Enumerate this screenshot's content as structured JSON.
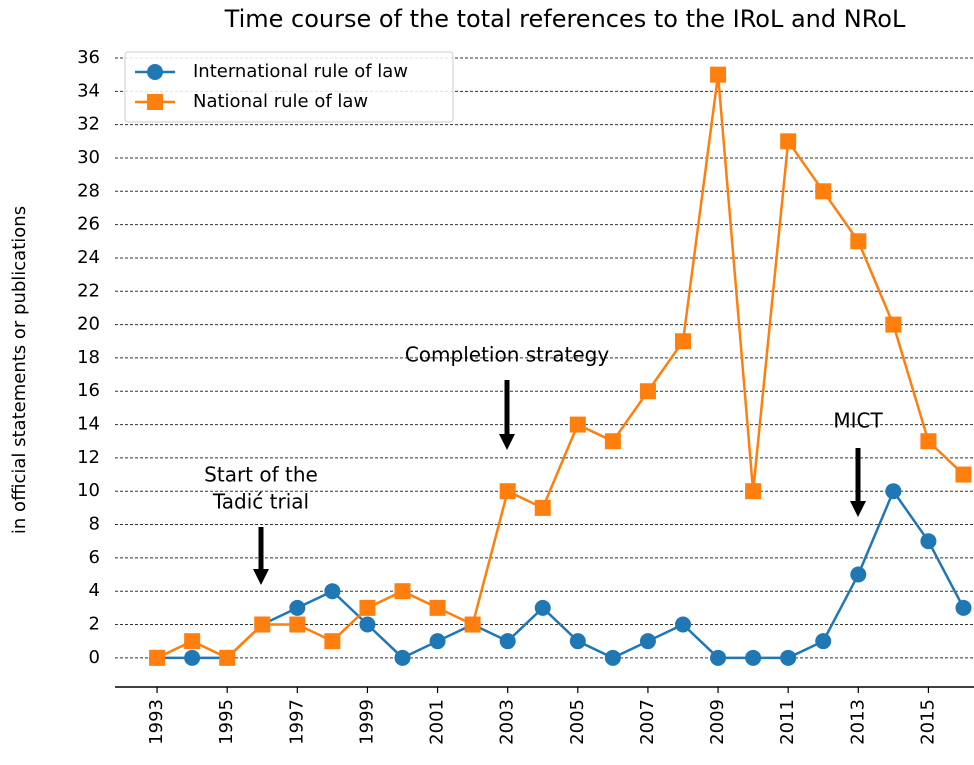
{
  "chart_data": {
    "type": "line",
    "title": "Time course of the total references to the IRoL and NRoL",
    "ylabel": "in official statements or publications",
    "x": [
      1993,
      1994,
      1995,
      1996,
      1997,
      1998,
      1999,
      2000,
      2001,
      2002,
      2003,
      2004,
      2005,
      2006,
      2007,
      2008,
      2009,
      2010,
      2011,
      2012,
      2013,
      2014,
      2015,
      2016
    ],
    "series": [
      {
        "name": "International rule of law",
        "color": "#1f77b4",
        "marker": "circle",
        "values": [
          0,
          0,
          0,
          2,
          3,
          4,
          2,
          0,
          1,
          2,
          1,
          3,
          1,
          0,
          1,
          2,
          0,
          0,
          0,
          1,
          5,
          10,
          7,
          3
        ]
      },
      {
        "name": "National rule of law",
        "color": "#ff7f0e",
        "marker": "square",
        "values": [
          0,
          1,
          0,
          2,
          2,
          1,
          3,
          4,
          3,
          2,
          10,
          9,
          14,
          13,
          16,
          19,
          35,
          10,
          31,
          28,
          25,
          20,
          13,
          11
        ]
      }
    ],
    "xlim": [
      1991.8,
      2016.3
    ],
    "xticks": [
      1993,
      1995,
      1997,
      1999,
      2001,
      2003,
      2005,
      2007,
      2009,
      2011,
      2013,
      2015
    ],
    "ylim": [
      -1.75,
      36.6
    ],
    "yticks": [
      0,
      2,
      4,
      6,
      8,
      10,
      12,
      14,
      16,
      18,
      20,
      22,
      24,
      26,
      28,
      30,
      32,
      34,
      36
    ],
    "grid": true,
    "legend": "upper left",
    "annotations": [
      {
        "lines": [
          "Start of the",
          "Tadić trial"
        ]
      },
      {
        "lines": [
          "Completion strategy"
        ]
      },
      {
        "lines": [
          "MICT"
        ]
      }
    ]
  }
}
